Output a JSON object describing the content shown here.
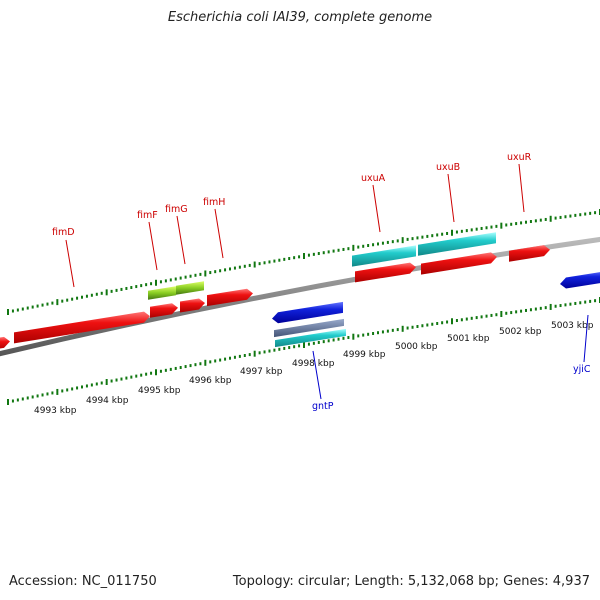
{
  "title": "Escherichia coli IAI39, complete genome",
  "footer": {
    "accession": "Accession: NC_011750",
    "summary": "Topology: circular; Length: 5,132,068 bp; Genes: 4,937"
  },
  "scale_labels": [
    "4993 kbp",
    "4994 kbp",
    "4995 kbp",
    "4996 kbp",
    "4997 kbp",
    "4998 kbp",
    "4999 kbp",
    "5000 kbp",
    "5001 kbp",
    "5002 kbp",
    "5003 kbp"
  ],
  "gene_labels": [
    {
      "name": "fimD",
      "strand": "forward",
      "color": "#cc0000"
    },
    {
      "name": "fimF",
      "strand": "forward",
      "color": "#cc0000"
    },
    {
      "name": "fimG",
      "strand": "forward",
      "color": "#cc0000"
    },
    {
      "name": "fimH",
      "strand": "forward",
      "color": "#cc0000"
    },
    {
      "name": "uxuA",
      "strand": "forward",
      "color": "#cc0000"
    },
    {
      "name": "uxuB",
      "strand": "forward",
      "color": "#cc0000"
    },
    {
      "name": "uxuR",
      "strand": "forward",
      "color": "#cc0000"
    },
    {
      "name": "gntP",
      "strand": "reverse",
      "color": "#0000cc"
    },
    {
      "name": "yjiC",
      "strand": "reverse",
      "color": "#0000cc"
    }
  ],
  "colors": {
    "forward_gene": "#ee1111",
    "reverse_gene": "#1122dd",
    "rna_gene": "#22cccc",
    "pseudo_gene": "#88cc22",
    "other_gene": "#5577aa",
    "backbone": "#888888",
    "tick": "#117711"
  }
}
